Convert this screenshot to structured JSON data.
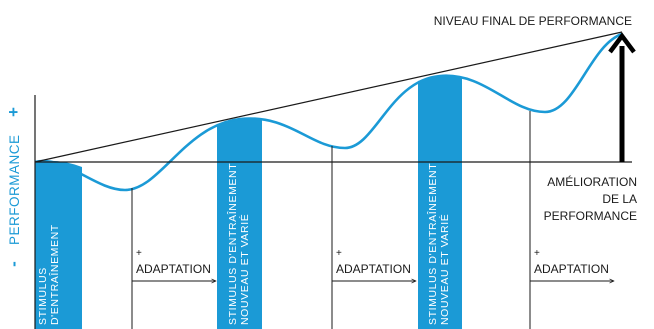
{
  "colors": {
    "accent": "#1b9ad6",
    "line": "#1a1a1a",
    "text": "#1a1a1a"
  },
  "axis": {
    "label": "PERFORMANCE",
    "plus": "+",
    "minus": "-"
  },
  "top_label": "NIVEAU FINAL DE PERFORMANCE",
  "improvement_label": {
    "line1": "AMÉLIORATION",
    "line2": "DE LA",
    "line3": "PERFORMANCE"
  },
  "stimuli": [
    {
      "line1": "STIMULUS",
      "line2": "D'ENTRAÎNEMENT"
    },
    {
      "line1": "STIMULUS D'ENTRAÎNEMENT",
      "line2": "NOUVEAU ET VARIÉ"
    },
    {
      "line1": "STIMULUS D'ENTRAÎNEMENT",
      "line2": "NOUVEAU ET VARIÉ"
    }
  ],
  "adaptations": [
    {
      "plus": "+",
      "label": "ADAPTATION"
    },
    {
      "plus": "+",
      "label": "ADAPTATION"
    },
    {
      "plus": "+",
      "label": "ADAPTATION"
    }
  ]
}
